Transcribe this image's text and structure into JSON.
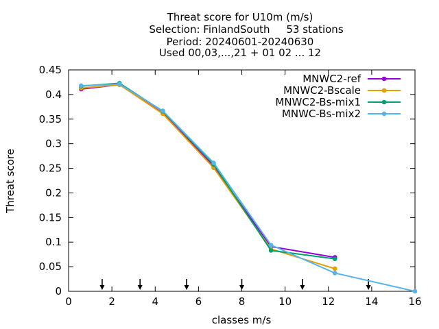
{
  "chart_data": {
    "type": "line",
    "title_lines": [
      "Threat score  for U10m (m/s)",
      "Selection: FinlandSouth     53 stations",
      "Period: 20240601-20240630",
      "Used 00,03,...,21 + 01 02 ... 12"
    ],
    "xlabel": "classes m/s",
    "ylabel": "Threat score",
    "xlim": [
      0,
      16
    ],
    "ylim": [
      0,
      0.45
    ],
    "xticks": [
      "0",
      "2",
      "4",
      "6",
      "8",
      "10",
      "12",
      "14",
      "16"
    ],
    "yticks": [
      "0",
      "0.05",
      "0.1",
      "0.15",
      "0.2",
      "0.25",
      "0.3",
      "0.35",
      "0.4",
      "0.45"
    ],
    "grid": false,
    "legend_position": "top-right",
    "arrow_markers_x": [
      1.55,
      3.3,
      5.45,
      8.0,
      10.8,
      13.85
    ],
    "series": [
      {
        "name": "MNWC2-ref",
        "color": "#9400d3",
        "points": [
          [
            0.58,
            0.411
          ],
          [
            2.35,
            0.42
          ],
          [
            4.35,
            0.362
          ],
          [
            6.7,
            0.254
          ],
          [
            9.35,
            0.091
          ],
          [
            12.3,
            0.069
          ]
        ]
      },
      {
        "name": "MNWC2-Bscale",
        "color": "#e69f00",
        "points": [
          [
            0.58,
            0.413
          ],
          [
            2.35,
            0.42
          ],
          [
            4.35,
            0.361
          ],
          [
            6.7,
            0.251
          ],
          [
            9.35,
            0.086
          ],
          [
            12.3,
            0.046
          ]
        ]
      },
      {
        "name": "MNWC2-Bs-mix1",
        "color": "#009e73",
        "points": [
          [
            0.58,
            0.417
          ],
          [
            2.35,
            0.423
          ],
          [
            4.35,
            0.366
          ],
          [
            6.7,
            0.258
          ],
          [
            9.35,
            0.083
          ],
          [
            12.3,
            0.066
          ]
        ]
      },
      {
        "name": "MNWC-Bs-mix2",
        "color": "#56b4e9",
        "points": [
          [
            0.58,
            0.418
          ],
          [
            2.35,
            0.421
          ],
          [
            4.35,
            0.367
          ],
          [
            6.7,
            0.261
          ],
          [
            9.35,
            0.094
          ],
          [
            12.3,
            0.037
          ],
          [
            16.0,
            0.0
          ]
        ]
      }
    ]
  }
}
